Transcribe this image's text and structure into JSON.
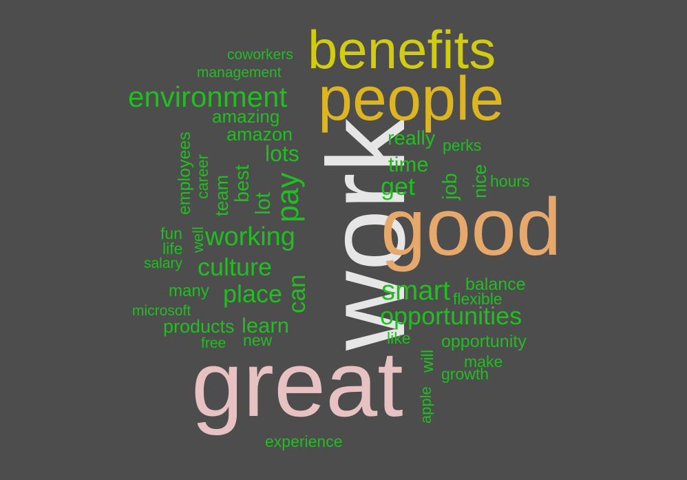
{
  "colors": {
    "background": "#4d4d4d",
    "green": "#1fbf1f",
    "yellow": "#d2cc10",
    "gold": "#dcb521",
    "white": "#e6e6e6",
    "orange": "#e7a86b",
    "pink": "#e8c2c2"
  },
  "words": {
    "work": "work",
    "great": "great",
    "good": "good",
    "people": "people",
    "benefits": "benefits",
    "environment": "environment",
    "coworkers": "coworkers",
    "management": "management",
    "amazing": "amazing",
    "amazon": "amazon",
    "lots": "lots",
    "really": "really",
    "perks": "perks",
    "time": "time",
    "get": "get",
    "job": "job",
    "nice": "nice",
    "hours": "hours",
    "employees": "employees",
    "career": "career",
    "team": "team",
    "best": "best",
    "lot": "lot",
    "pay": "pay",
    "fun": "fun",
    "well": "well",
    "working": "working",
    "life": "life",
    "salary": "salary",
    "culture": "culture",
    "many": "many",
    "place": "place",
    "can": "can",
    "smart": "smart",
    "balance": "balance",
    "flexible": "flexible",
    "microsoft": "microsoft",
    "opportunities": "opportunities",
    "products": "products",
    "learn": "learn",
    "free": "free",
    "new": "new",
    "like": "like",
    "will": "will",
    "opportunity": "opportunity",
    "make": "make",
    "growth": "growth",
    "apple": "apple",
    "experience": "experience"
  }
}
